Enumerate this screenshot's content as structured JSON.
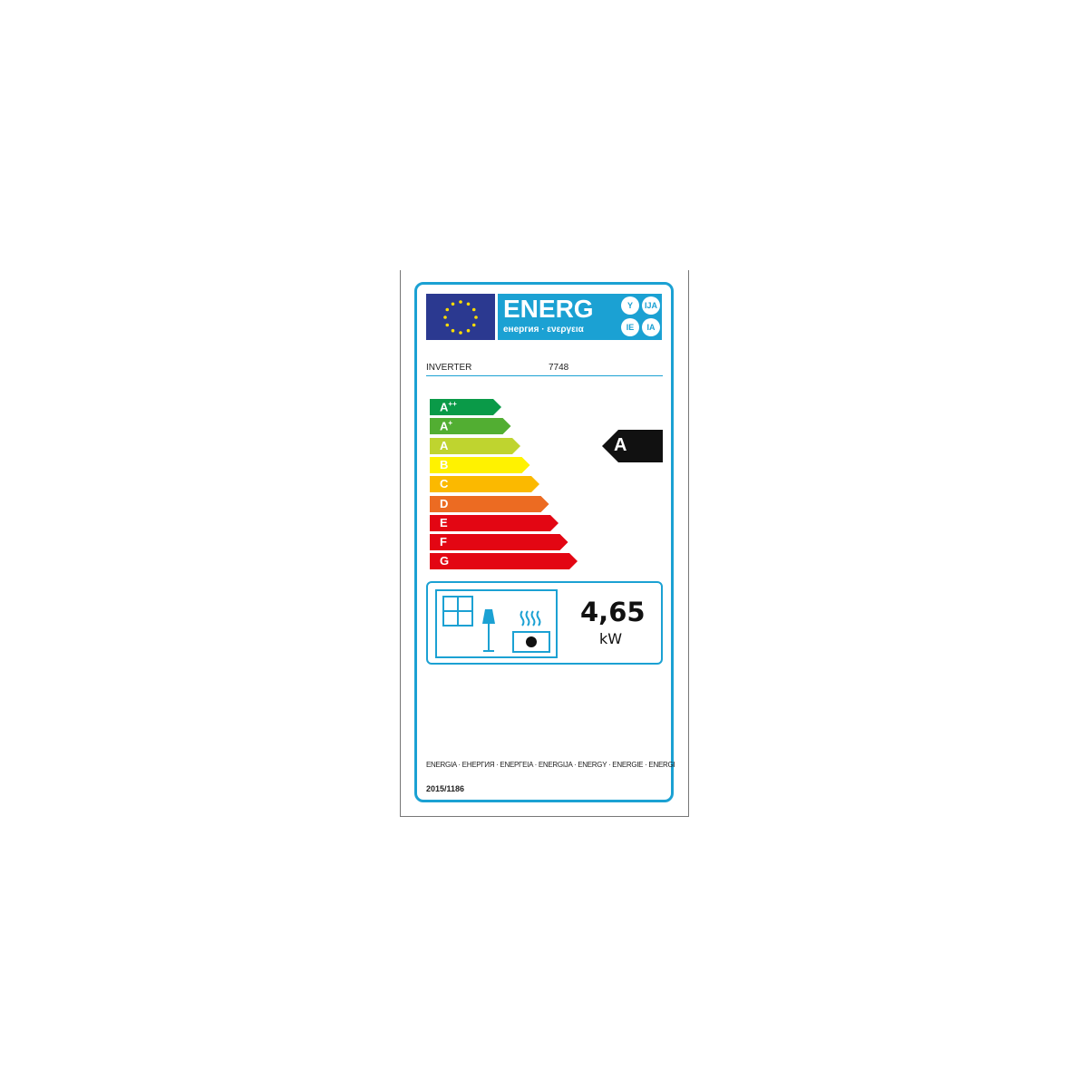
{
  "header": {
    "logo_text": "ENERG",
    "logo_subtext": "енергия · ενεργεια",
    "suffixes": [
      "Y",
      "IJA",
      "IE",
      "IA"
    ]
  },
  "supplier": "INVERTER",
  "model": "7748",
  "scale": [
    {
      "label": "A",
      "sup": "++",
      "color": "#0a9a48"
    },
    {
      "label": "A",
      "sup": "+",
      "color": "#52ae32"
    },
    {
      "label": "A",
      "sup": "",
      "color": "#bfd42f"
    },
    {
      "label": "B",
      "sup": "",
      "color": "#fff200"
    },
    {
      "label": "C",
      "sup": "",
      "color": "#fbb900"
    },
    {
      "label": "D",
      "sup": "",
      "color": "#ec6b22"
    },
    {
      "label": "E",
      "sup": "",
      "color": "#e30613"
    },
    {
      "label": "F",
      "sup": "",
      "color": "#e30613"
    },
    {
      "label": "G",
      "sup": "",
      "color": "#e30613"
    }
  ],
  "rating": "A",
  "power": {
    "value": "4,65",
    "unit": "kW"
  },
  "footer": {
    "languages": "ENERGIA · ЕНЕРГИЯ · ΕΝΕΡΓΕΙΑ · ENERGIJA · ENERGY · ENERGIE · ENERGI",
    "regulation": "2015/1186"
  },
  "colors": {
    "accent": "#1ba1d3",
    "eu_blue": "#2b3990"
  }
}
